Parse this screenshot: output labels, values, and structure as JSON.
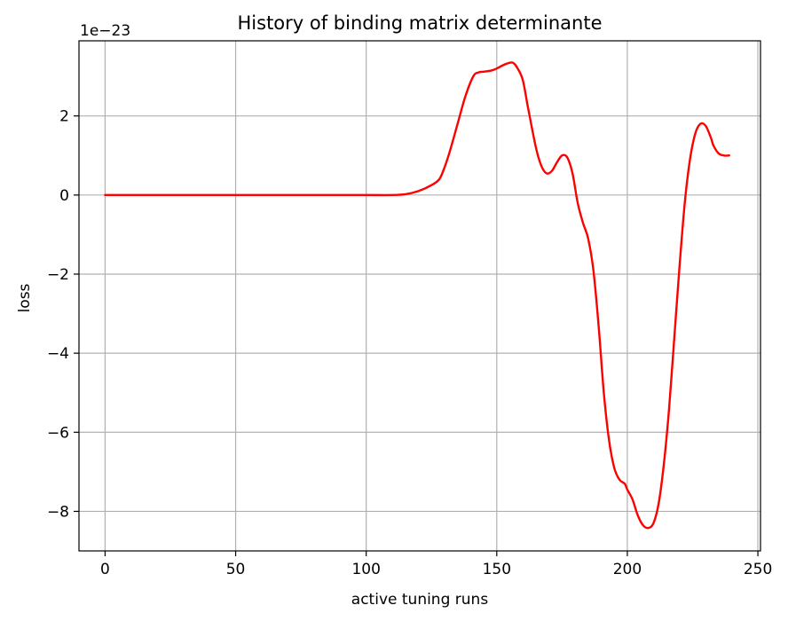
{
  "chart_data": {
    "type": "line",
    "title": "History of binding matrix determinante",
    "xlabel": "active tuning runs",
    "ylabel": "loss",
    "y_offset_label": "1e−23",
    "xlim": [
      -10,
      251
    ],
    "ylim": [
      -9.0,
      3.9
    ],
    "x_ticks": [
      0,
      50,
      100,
      150,
      200,
      250
    ],
    "x_tick_labels": [
      "0",
      "50",
      "100",
      "150",
      "200",
      "250"
    ],
    "y_ticks": [
      -8,
      -6,
      -4,
      -2,
      0,
      2
    ],
    "y_tick_labels": [
      "−8",
      "−6",
      "−4",
      "−2",
      "0",
      "2"
    ],
    "grid": true,
    "series": [
      {
        "color": "#ff0000",
        "x": [
          0,
          20,
          40,
          60,
          80,
          100,
          110,
          115,
          120,
          125,
          128,
          130,
          132,
          135,
          138,
          141,
          143,
          145,
          148,
          150,
          153,
          156,
          158,
          160,
          162,
          165,
          167,
          169,
          171,
          173,
          175,
          177,
          179,
          181,
          183,
          185,
          187,
          189,
          191,
          193,
          195,
          197,
          199,
          200,
          202,
          204,
          206,
          208,
          210,
          212,
          214,
          216,
          218,
          220,
          222,
          224,
          226,
          228,
          230,
          232,
          233,
          235,
          237,
          239
        ],
        "y": [
          0.0,
          0.0,
          0.0,
          0.0,
          0.0,
          0.0,
          0.0,
          0.02,
          0.1,
          0.25,
          0.4,
          0.7,
          1.1,
          1.8,
          2.5,
          3.0,
          3.1,
          3.12,
          3.15,
          3.2,
          3.3,
          3.35,
          3.2,
          2.9,
          2.2,
          1.2,
          0.75,
          0.55,
          0.6,
          0.82,
          1.0,
          0.95,
          0.55,
          -0.2,
          -0.7,
          -1.1,
          -1.9,
          -3.3,
          -5.0,
          -6.2,
          -6.9,
          -7.2,
          -7.3,
          -7.45,
          -7.7,
          -8.1,
          -8.35,
          -8.42,
          -8.3,
          -7.8,
          -6.8,
          -5.4,
          -3.6,
          -1.8,
          -0.2,
          0.9,
          1.55,
          1.8,
          1.75,
          1.45,
          1.25,
          1.05,
          1.0,
          1.0
        ]
      }
    ]
  }
}
